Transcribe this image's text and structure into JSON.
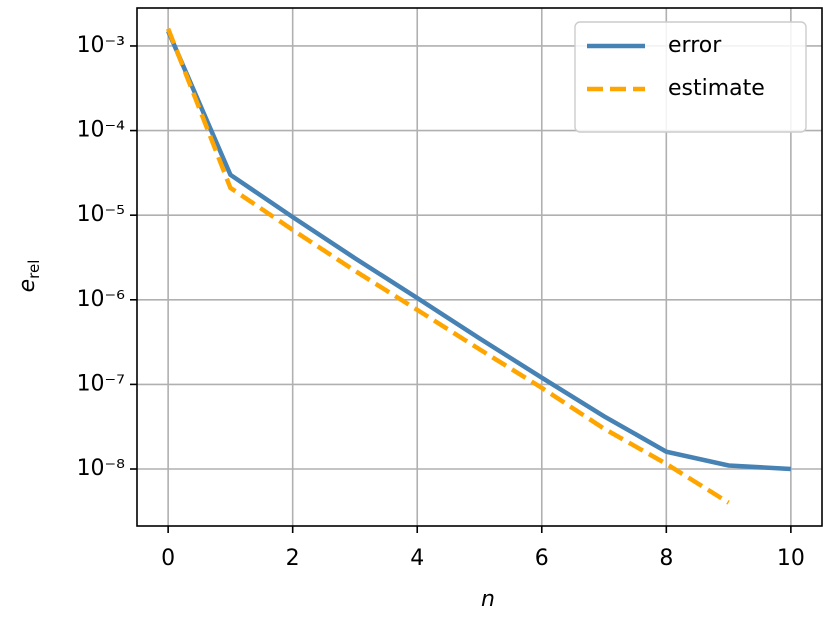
{
  "chart_data": {
    "type": "line",
    "xlabel": "n",
    "ylabel": {
      "base": "e",
      "sub": "rel"
    },
    "x": [
      0,
      1,
      2,
      3,
      4,
      5,
      6,
      7,
      8,
      9,
      10
    ],
    "series": [
      {
        "name": "error",
        "color": "#4682b4",
        "dash": "solid",
        "values": [
          0.0015,
          3e-05,
          9.5e-06,
          3.1e-06,
          1.05e-06,
          3.5e-07,
          1.2e-07,
          4.2e-08,
          1.6e-08,
          1.1e-08,
          1e-08
        ]
      },
      {
        "name": "estimate",
        "color": "#ffa500",
        "dash": "dashed",
        "values": [
          0.0016,
          2.1e-05,
          6.7e-06,
          2.2e-06,
          7.6e-07,
          2.6e-07,
          9.1e-08,
          3e-08,
          1.15e-08,
          4e-09,
          null
        ]
      }
    ],
    "xlim": [
      -0.5,
      10.5
    ],
    "xticks": [
      0,
      2,
      4,
      6,
      8,
      10
    ],
    "ylim": [
      2.12e-09,
      0.00281
    ],
    "ylog": true,
    "yticks": [
      {
        "value": 1e-08,
        "label": "10⁻⁸"
      },
      {
        "value": 1e-07,
        "label": "10⁻⁷"
      },
      {
        "value": 1e-06,
        "label": "10⁻⁶"
      },
      {
        "value": 1e-05,
        "label": "10⁻⁵"
      },
      {
        "value": 0.0001,
        "label": "10⁻⁴"
      },
      {
        "value": 0.001,
        "label": "10⁻³"
      }
    ],
    "grid": true,
    "legend": "upper right"
  }
}
